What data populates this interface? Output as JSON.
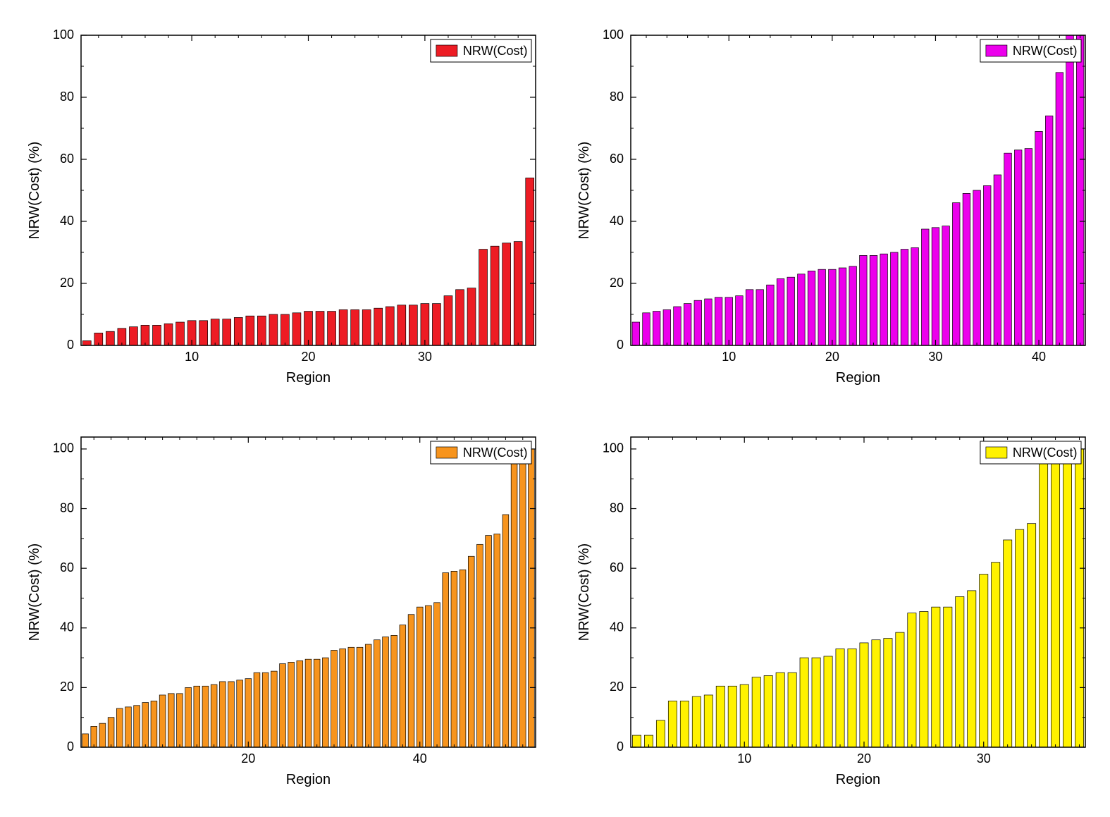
{
  "global": {
    "background_color": "#ffffff",
    "axis_color": "#000000",
    "text_color": "#000000",
    "border_color": "#000000",
    "axis_label_fontsize": 20,
    "tick_label_fontsize": 18,
    "legend_fontsize": 18,
    "tick_length_major": 8,
    "tick_length_minor": 4,
    "axis_width": 1.5,
    "bar_stroke": "#000000",
    "bar_stroke_width": 0.7
  },
  "panels": [
    {
      "id": "top-left",
      "type": "bar",
      "xlabel": "Region",
      "ylabel": "NRW(Cost) (%)",
      "legend_label": "NRW(Cost)",
      "bar_color": "#ed1c24",
      "ylim": [
        0,
        100
      ],
      "ytick_step": 20,
      "xticks": [
        10,
        20,
        30
      ],
      "xminor_step": 2,
      "yminor_step": 10,
      "values": [
        1.5,
        4,
        4.5,
        5.5,
        6,
        6.5,
        6.5,
        7,
        7.5,
        8,
        8,
        8.5,
        8.5,
        9,
        9.5,
        9.5,
        10,
        10,
        10.5,
        11,
        11,
        11,
        11.5,
        11.5,
        11.5,
        12,
        12.5,
        13,
        13,
        13.5,
        13.5,
        16,
        18,
        18.5,
        31,
        32,
        33,
        33.5,
        54
      ]
    },
    {
      "id": "top-right",
      "type": "bar",
      "xlabel": "Region",
      "ylabel": "NRW(Cost) (%)",
      "legend_label": "NRW(Cost)",
      "bar_color": "#ec00ec",
      "ylim": [
        0,
        100
      ],
      "ytick_step": 20,
      "xticks": [
        10,
        20,
        30,
        40
      ],
      "xminor_step": 2,
      "yminor_step": 10,
      "values": [
        7.5,
        10.5,
        11,
        11.5,
        12.5,
        13.5,
        14.5,
        15,
        15.5,
        15.5,
        16,
        18,
        18,
        19.5,
        21.5,
        22,
        23,
        24,
        24.5,
        24.5,
        25,
        25.5,
        29,
        29,
        29.5,
        30,
        31,
        31.5,
        37.5,
        38,
        38.5,
        46,
        49,
        50,
        51.5,
        55,
        62,
        63,
        63.5,
        69,
        74,
        88,
        100,
        100
      ]
    },
    {
      "id": "bottom-left",
      "type": "bar",
      "xlabel": "Region",
      "ylabel": "NRW(Cost) (%)",
      "legend_label": "NRW(Cost)",
      "bar_color": "#f7941d",
      "ylim": [
        0,
        104
      ],
      "ytick_step": 20,
      "xticks": [
        20,
        40
      ],
      "xminor_step": 2,
      "yminor_step": 10,
      "values": [
        4.5,
        7,
        8,
        10,
        13,
        13.5,
        14,
        15,
        15.5,
        17.5,
        18,
        18,
        20,
        20.5,
        20.5,
        21,
        22,
        22,
        22.5,
        23,
        25,
        25,
        25.5,
        28,
        28.5,
        29,
        29.5,
        29.5,
        30,
        32.5,
        33,
        33.5,
        33.5,
        34.5,
        36,
        37,
        37.5,
        41,
        44.5,
        47,
        47.5,
        48.5,
        58.5,
        59,
        59.5,
        64,
        68,
        71,
        71.5,
        78,
        100,
        100,
        100
      ]
    },
    {
      "id": "bottom-right",
      "type": "bar",
      "xlabel": "Region",
      "ylabel": "NRW(Cost) (%)",
      "legend_label": "NRW(Cost)",
      "bar_color": "#fff200",
      "ylim": [
        0,
        104
      ],
      "ytick_step": 20,
      "xticks": [
        10,
        20,
        30
      ],
      "xminor_step": 2,
      "yminor_step": 10,
      "values": [
        4,
        4,
        9,
        15.5,
        15.5,
        17,
        17.5,
        20.5,
        20.5,
        21,
        23.5,
        24,
        25,
        25,
        30,
        30,
        30.5,
        33,
        33,
        35,
        36,
        36.5,
        38.5,
        45,
        45.5,
        47,
        47,
        50.5,
        52.5,
        58,
        62,
        69.5,
        73,
        75,
        97,
        100,
        100,
        100
      ]
    }
  ]
}
